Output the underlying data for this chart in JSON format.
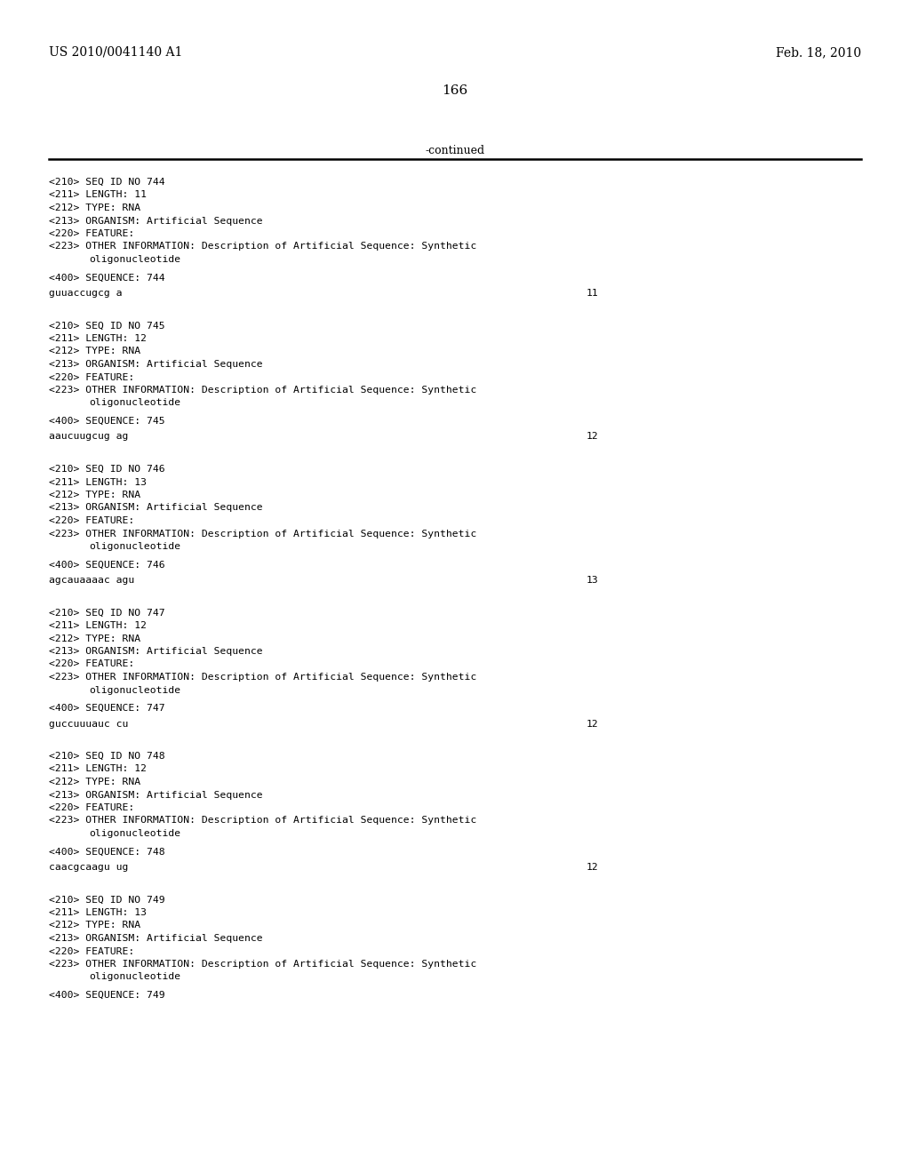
{
  "header_left": "US 2010/0041140 A1",
  "header_right": "Feb. 18, 2010",
  "page_number": "166",
  "continued_text": "-continued",
  "background_color": "#ffffff",
  "text_color": "#000000",
  "sections": [
    {
      "seq_id": "744",
      "length": "11",
      "type": "RNA",
      "organism": "Artificial Sequence",
      "other_info": "Description of Artificial Sequence: Synthetic",
      "other_info2": "oligonucleotide",
      "sequence_label": "744",
      "sequence": "guuaccugcg a",
      "seq_length_num": "11"
    },
    {
      "seq_id": "745",
      "length": "12",
      "type": "RNA",
      "organism": "Artificial Sequence",
      "other_info": "Description of Artificial Sequence: Synthetic",
      "other_info2": "oligonucleotide",
      "sequence_label": "745",
      "sequence": "aaucuugcug ag",
      "seq_length_num": "12"
    },
    {
      "seq_id": "746",
      "length": "13",
      "type": "RNA",
      "organism": "Artificial Sequence",
      "other_info": "Description of Artificial Sequence: Synthetic",
      "other_info2": "oligonucleotide",
      "sequence_label": "746",
      "sequence": "agcauaaaac agu",
      "seq_length_num": "13"
    },
    {
      "seq_id": "747",
      "length": "12",
      "type": "RNA",
      "organism": "Artificial Sequence",
      "other_info": "Description of Artificial Sequence: Synthetic",
      "other_info2": "oligonucleotide",
      "sequence_label": "747",
      "sequence": "guccuuuauc cu",
      "seq_length_num": "12"
    },
    {
      "seq_id": "748",
      "length": "12",
      "type": "RNA",
      "organism": "Artificial Sequence",
      "other_info": "Description of Artificial Sequence: Synthetic",
      "other_info2": "oligonucleotide",
      "sequence_label": "748",
      "sequence": "caacgcaagu ug",
      "seq_length_num": "12"
    },
    {
      "seq_id": "749",
      "length": "13",
      "type": "RNA",
      "organism": "Artificial Sequence",
      "other_info": "Description of Artificial Sequence: Synthetic",
      "other_info2": "oligonucleotide",
      "sequence_label": "749",
      "sequence": null,
      "seq_length_num": null
    }
  ]
}
